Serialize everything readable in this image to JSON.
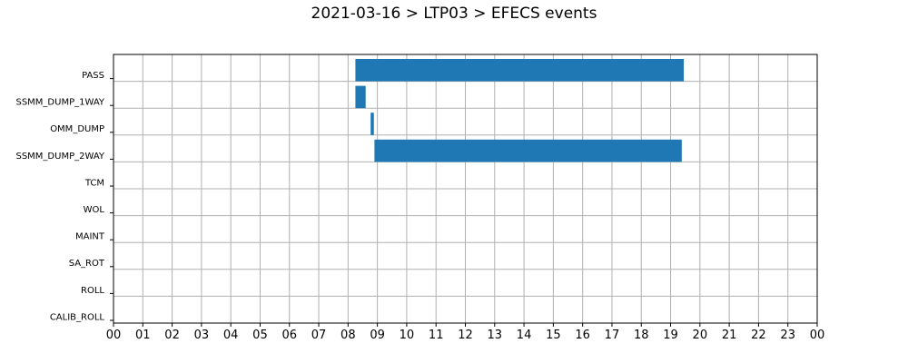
{
  "title": "2021-03-16 > LTP03 > EFECS events",
  "chart_data": {
    "type": "bar",
    "orientation": "horizontal",
    "title": "2021-03-16 > LTP03 > EFECS events",
    "categories": [
      "PASS",
      "SSMM_DUMP_1WAY",
      "OMM_DUMP",
      "SSMM_DUMP_2WAY",
      "TCM",
      "WOL",
      "MAINT",
      "SA_ROT",
      "ROLL",
      "CALIB_ROLL"
    ],
    "x_ticks": [
      "00",
      "01",
      "02",
      "03",
      "04",
      "05",
      "06",
      "07",
      "08",
      "09",
      "10",
      "11",
      "12",
      "13",
      "14",
      "15",
      "16",
      "17",
      "18",
      "19",
      "20",
      "21",
      "22",
      "23",
      "00"
    ],
    "xlim": [
      0,
      24
    ],
    "grid": true,
    "bar_color": "#1f77b4",
    "events": [
      {
        "category": "PASS",
        "start": 8.25,
        "end": 19.45
      },
      {
        "category": "SSMM_DUMP_1WAY",
        "start": 8.25,
        "end": 8.6
      },
      {
        "category": "OMM_DUMP",
        "start": 8.77,
        "end": 8.88
      },
      {
        "category": "SSMM_DUMP_2WAY",
        "start": 8.9,
        "end": 19.38
      }
    ]
  }
}
